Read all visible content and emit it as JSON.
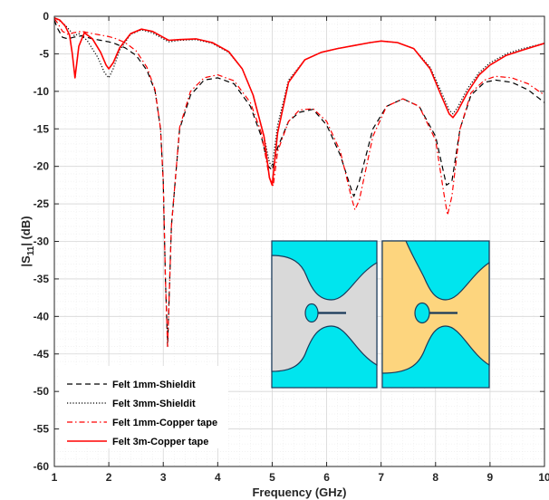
{
  "chart_data": {
    "type": "line",
    "title": "",
    "xlabel": "Frequency (GHz)",
    "ylabel_parts": [
      "|S",
      "11",
      "| (dB)"
    ],
    "xlim": [
      1,
      10
    ],
    "ylim": [
      -60,
      0
    ],
    "xticks": [
      "1",
      "2",
      "3",
      "4",
      "5",
      "6",
      "7",
      "8",
      "9",
      "10"
    ],
    "yticks": [
      "0",
      "-5",
      "-10",
      "-15",
      "-20",
      "-25",
      "-30",
      "-35",
      "-40",
      "-45",
      "-50",
      "-55",
      "-60"
    ],
    "grid": true,
    "minor_grid": true,
    "legend_position": "bottom-left",
    "series": [
      {
        "name": "Felt 1mm-Shieldit",
        "color": "#000000",
        "style": "dashed",
        "x": [
          1.0,
          1.05,
          1.15,
          1.25,
          1.35,
          1.5,
          1.7,
          1.85,
          2.0,
          2.1,
          2.3,
          2.5,
          2.7,
          2.85,
          2.95,
          3.0,
          3.04,
          3.08,
          3.15,
          3.3,
          3.5,
          3.75,
          4.0,
          4.3,
          4.6,
          4.8,
          4.93,
          5.0,
          5.1,
          5.3,
          5.5,
          5.75,
          6.0,
          6.25,
          6.45,
          6.5,
          6.6,
          6.85,
          7.1,
          7.4,
          7.7,
          8.0,
          8.2,
          8.3,
          8.45,
          8.65,
          8.9,
          9.1,
          9.4,
          9.7,
          10.0
        ],
        "y": [
          -0.5,
          -1.5,
          -2.8,
          -3.0,
          -2.8,
          -2.6,
          -3.0,
          -3.2,
          -3.4,
          -3.6,
          -4.2,
          -5.2,
          -7.2,
          -10.0,
          -15.0,
          -22.0,
          -35.0,
          -44.0,
          -28.0,
          -15.0,
          -10.5,
          -8.5,
          -8.2,
          -9.0,
          -12.0,
          -16.0,
          -20.0,
          -20.5,
          -17.5,
          -14.0,
          -12.8,
          -12.4,
          -14.5,
          -18.5,
          -23.0,
          -24.0,
          -22.0,
          -15.0,
          -12.0,
          -11.0,
          -12.0,
          -16.0,
          -22.5,
          -22.0,
          -15.0,
          -10.5,
          -8.8,
          -8.5,
          -8.8,
          -9.8,
          -11.5
        ]
      },
      {
        "name": "Felt 3mm-Shieldit",
        "color": "#000000",
        "style": "dotted",
        "x": [
          1.0,
          1.1,
          1.2,
          1.3,
          1.37,
          1.45,
          1.6,
          1.8,
          1.92,
          2.0,
          2.08,
          2.2,
          2.4,
          2.6,
          2.8,
          3.0,
          3.1,
          3.3,
          3.6,
          3.9,
          4.2,
          4.45,
          4.65,
          4.85,
          4.95,
          5.0,
          5.1,
          5.3,
          5.6,
          5.9,
          6.2,
          6.5,
          6.8,
          7.0,
          7.3,
          7.6,
          7.9,
          8.1,
          8.25,
          8.32,
          8.4,
          8.6,
          8.8,
          9.0,
          9.3,
          9.6,
          10.0
        ],
        "y": [
          -0.2,
          -0.6,
          -1.2,
          -2.0,
          -2.6,
          -2.3,
          -3.2,
          -5.5,
          -7.5,
          -8.2,
          -7.0,
          -4.5,
          -2.4,
          -1.8,
          -2.2,
          -3.0,
          -3.4,
          -3.2,
          -3.1,
          -3.6,
          -4.8,
          -7.0,
          -10.5,
          -16.0,
          -19.5,
          -20.0,
          -14.5,
          -8.5,
          -5.8,
          -4.8,
          -4.3,
          -3.9,
          -3.5,
          -3.3,
          -3.5,
          -4.3,
          -6.8,
          -10.0,
          -12.5,
          -13.0,
          -12.2,
          -9.5,
          -7.5,
          -6.2,
          -5.0,
          -4.3,
          -3.6
        ]
      },
      {
        "name": "Felt 1mm-Copper tape",
        "color": "#ff0000",
        "style": "dashdot",
        "x": [
          1.0,
          1.05,
          1.15,
          1.25,
          1.35,
          1.5,
          1.7,
          1.85,
          2.0,
          2.1,
          2.3,
          2.5,
          2.7,
          2.85,
          2.95,
          3.0,
          3.04,
          3.08,
          3.15,
          3.3,
          3.5,
          3.75,
          4.0,
          4.3,
          4.6,
          4.8,
          4.95,
          5.02,
          5.1,
          5.3,
          5.5,
          5.75,
          6.0,
          6.25,
          6.45,
          6.52,
          6.6,
          6.85,
          7.1,
          7.4,
          7.7,
          8.0,
          8.15,
          8.22,
          8.3,
          8.45,
          8.65,
          8.9,
          9.1,
          9.4,
          9.7,
          10.0
        ],
        "y": [
          -0.3,
          -0.8,
          -2.0,
          -2.4,
          -2.2,
          -2.0,
          -2.3,
          -2.5,
          -2.7,
          -2.9,
          -3.5,
          -4.6,
          -6.8,
          -9.8,
          -15.0,
          -22.0,
          -35.0,
          -44.0,
          -28.0,
          -14.8,
          -10.0,
          -8.2,
          -7.8,
          -8.6,
          -11.5,
          -15.5,
          -21.5,
          -22.6,
          -18.0,
          -14.0,
          -12.5,
          -12.3,
          -14.0,
          -18.0,
          -24.0,
          -25.8,
          -24.5,
          -16.0,
          -12.0,
          -11.0,
          -12.0,
          -16.5,
          -23.5,
          -26.5,
          -24.0,
          -15.0,
          -10.2,
          -8.5,
          -8.0,
          -8.2,
          -9.0,
          -10.5
        ]
      },
      {
        "name": "Felt 3m-Copper tape",
        "color": "#ff0000",
        "style": "solid",
        "x": [
          1.0,
          1.1,
          1.2,
          1.28,
          1.33,
          1.38,
          1.45,
          1.55,
          1.7,
          1.85,
          1.95,
          2.0,
          2.08,
          2.2,
          2.4,
          2.6,
          2.8,
          3.0,
          3.1,
          3.3,
          3.6,
          3.9,
          4.2,
          4.45,
          4.65,
          4.85,
          4.95,
          5.0,
          5.1,
          5.3,
          5.6,
          5.9,
          6.2,
          6.5,
          6.8,
          7.0,
          7.3,
          7.6,
          7.9,
          8.1,
          8.25,
          8.32,
          8.4,
          8.6,
          8.8,
          9.0,
          9.3,
          9.6,
          10.0
        ],
        "y": [
          -0.2,
          -0.5,
          -1.3,
          -2.5,
          -5.0,
          -8.2,
          -4.0,
          -2.2,
          -3.0,
          -4.8,
          -6.5,
          -7.0,
          -6.2,
          -4.2,
          -2.3,
          -1.7,
          -2.0,
          -2.8,
          -3.2,
          -3.1,
          -3.0,
          -3.5,
          -4.7,
          -7.0,
          -10.5,
          -16.0,
          -21.5,
          -22.5,
          -15.5,
          -8.8,
          -5.8,
          -4.8,
          -4.3,
          -3.9,
          -3.5,
          -3.3,
          -3.5,
          -4.3,
          -7.0,
          -10.5,
          -13.0,
          -13.5,
          -12.7,
          -10.0,
          -7.8,
          -6.5,
          -5.2,
          -4.5,
          -3.6
        ]
      }
    ]
  },
  "inset": {
    "colors": {
      "substrate": "#00e5ee",
      "shieldit": "#d9d9d9",
      "copper": "#fdd57e",
      "edge": "#1a3a5a"
    }
  }
}
